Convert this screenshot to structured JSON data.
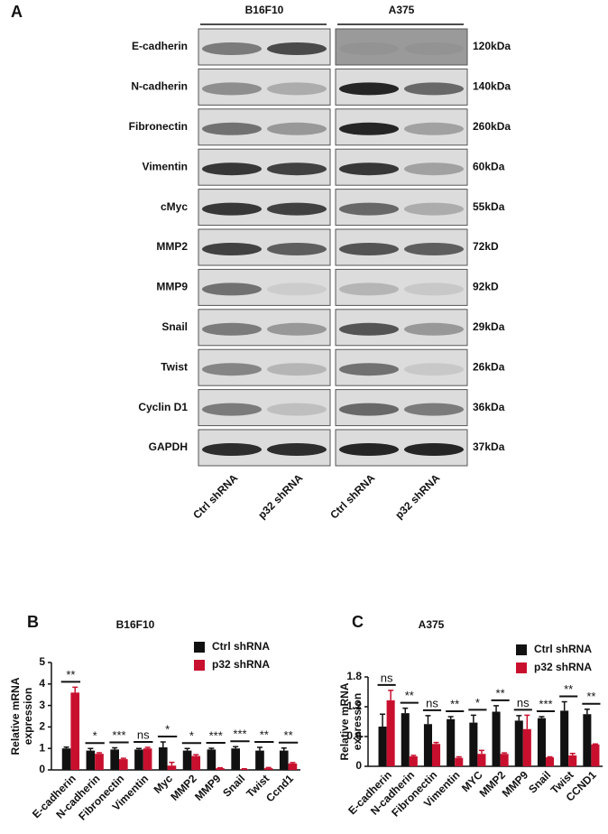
{
  "blot": {
    "panel_label": "A",
    "groups": [
      "B16F10",
      "A375"
    ],
    "lanes": [
      "Ctrl shRNA",
      "p32 shRNA",
      "Ctrl shRNA",
      "p32 shRNA"
    ],
    "proteins": [
      "E-cadherin",
      "N-cadherin",
      "Fibronectin",
      "Vimentin",
      "cMyc",
      "MMP2",
      "MMP9",
      "Snail",
      "Twist",
      "Cyclin D1",
      "GAPDH"
    ],
    "sizes": [
      "120kDa",
      "140kDa",
      "260kDa",
      "60kDa",
      "55kDa",
      "72kD",
      "92kD",
      "29kDa",
      "26kDa",
      "36kDa",
      "37kDa"
    ]
  },
  "chart_data": [
    {
      "type": "bar",
      "panel_label": "B",
      "title": "B16F10",
      "y_label": [
        "Relative mRNA",
        "expression"
      ],
      "categories": [
        "E-cadherin",
        "N-cadherin",
        "Fibronectin",
        "Vimentin",
        "Myc",
        "MMP2",
        "MMP9",
        "Snail",
        "Twist",
        "Ccnd1"
      ],
      "series": [
        {
          "name": "Ctrl shRNA",
          "color": "#111111",
          "values": [
            1.0,
            0.9,
            0.95,
            0.95,
            1.05,
            0.9,
            0.95,
            1.0,
            0.9,
            0.9
          ],
          "errors": [
            0.06,
            0.1,
            0.08,
            0.05,
            0.25,
            0.1,
            0.06,
            0.08,
            0.15,
            0.12
          ]
        },
        {
          "name": "p32 shRNA",
          "color": "#c8102e",
          "values": [
            3.6,
            0.75,
            0.5,
            1.0,
            0.2,
            0.65,
            0.08,
            0.03,
            0.08,
            0.3
          ],
          "errors": [
            0.25,
            0.05,
            0.04,
            0.05,
            0.15,
            0.06,
            0.02,
            0.02,
            0.03,
            0.04
          ]
        }
      ],
      "significance": [
        "**",
        "*",
        "***",
        "ns",
        "*",
        "*",
        "***",
        "***",
        "**",
        "**"
      ],
      "ylim": [
        0,
        5
      ],
      "yticks": [
        0,
        1,
        2,
        3,
        4,
        5
      ]
    },
    {
      "type": "bar",
      "panel_label": "C",
      "title": "A375",
      "y_label": [
        "Relative mRNA",
        "expression"
      ],
      "categories": [
        "E-cadherin",
        "N-cadherin",
        "Fibronectin",
        "Vimentin",
        "MYC",
        "MMP2",
        "MMP9",
        "Snail",
        "Twist",
        "CCND1"
      ],
      "series": [
        {
          "name": "Ctrl shRNA",
          "color": "#111111",
          "values": [
            0.8,
            1.07,
            0.85,
            0.95,
            0.88,
            1.1,
            0.92,
            0.97,
            1.12,
            1.05
          ],
          "errors": [
            0.25,
            0.1,
            0.17,
            0.05,
            0.15,
            0.12,
            0.1,
            0.03,
            0.18,
            0.1
          ]
        },
        {
          "name": "p32 shRNA",
          "color": "#c8102e",
          "values": [
            1.33,
            0.2,
            0.45,
            0.17,
            0.25,
            0.25,
            0.75,
            0.18,
            0.22,
            0.44
          ],
          "errors": [
            0.2,
            0.02,
            0.03,
            0.02,
            0.07,
            0.02,
            0.28,
            0.01,
            0.04,
            0.01
          ]
        }
      ],
      "significance": [
        "ns",
        "**",
        "ns",
        "**",
        "*",
        "**",
        "ns",
        "***",
        "**",
        "**"
      ],
      "ylim": [
        0,
        1.8
      ],
      "yticks": [
        0,
        0.6,
        1.2,
        1.8
      ]
    }
  ]
}
